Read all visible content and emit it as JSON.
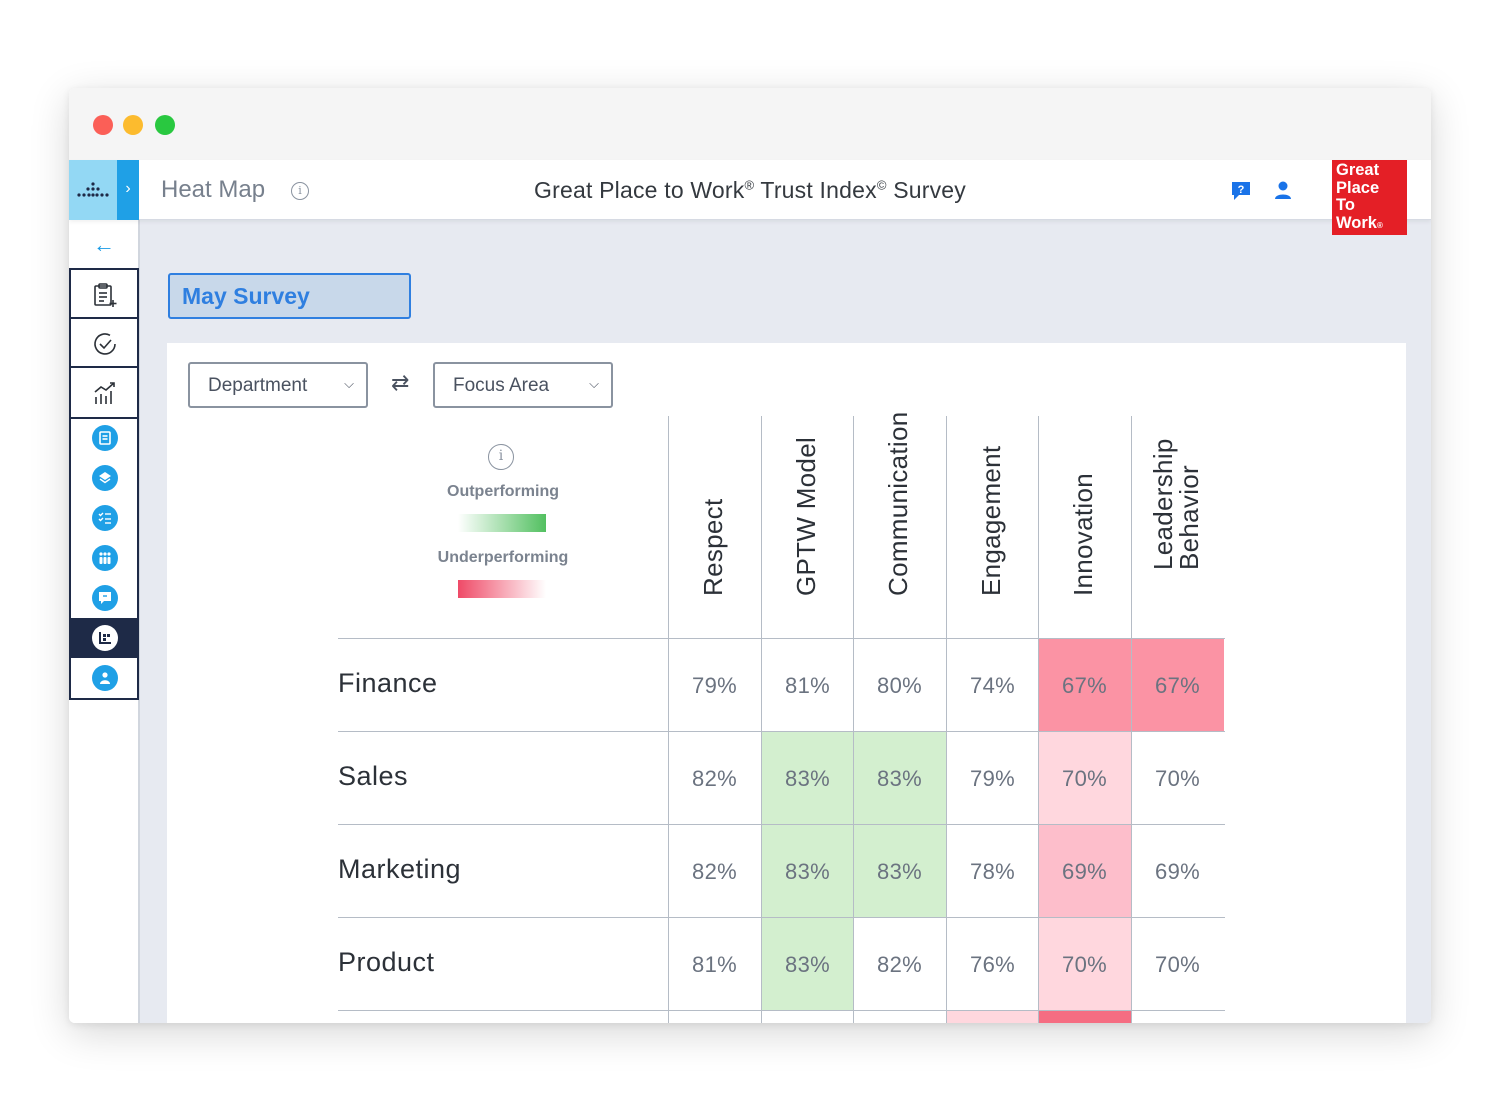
{
  "header": {
    "page_title": "Heat Map",
    "survey_title_main": "Great Place to Work",
    "survey_title_reg": "®",
    "survey_title_mid": " Trust Index",
    "survey_title_copy": "©",
    "survey_title_end": " Survey",
    "logo_lines": [
      "Great",
      "Place",
      "To",
      "Work"
    ],
    "logo_reg": "®",
    "icons": [
      "help-icon",
      "user-icon"
    ]
  },
  "sidebar": {
    "back_icon": "arrow-left-icon",
    "top_items": [
      "survey-clipboard-icon",
      "check-circle-icon",
      "analytics-icon"
    ],
    "items": [
      "document-icon",
      "layers-icon",
      "checklist-icon",
      "people-icon",
      "chat-icon",
      "heatmap-icon",
      "person-card-icon"
    ],
    "active_item": "heatmap-icon"
  },
  "survey_button": "May Survey",
  "filters": {
    "row_dimension": "Department",
    "column_dimension": "Focus Area",
    "swap_icon": "swap-arrows-icon"
  },
  "legend": {
    "outperforming": "Outperforming",
    "underperforming": "Underperforming",
    "colors": {
      "outperforming": "#52c060",
      "underperforming": "#ef4a67"
    }
  },
  "chart_data": {
    "type": "heatmap",
    "columns": [
      "Respect",
      "GPTW Model",
      "Communication",
      "Engagement",
      "Innovation",
      "Leadership Behavior"
    ],
    "rows": [
      "Finance",
      "Sales",
      "Marketing",
      "Product"
    ],
    "values": [
      [
        "79%",
        "81%",
        "80%",
        "74%",
        "67%",
        "67%"
      ],
      [
        "82%",
        "83%",
        "83%",
        "79%",
        "70%",
        "70%"
      ],
      [
        "82%",
        "83%",
        "83%",
        "78%",
        "69%",
        "69%"
      ],
      [
        "81%",
        "83%",
        "82%",
        "76%",
        "70%",
        "70%"
      ]
    ],
    "cell_colors": [
      [
        "#ffffff",
        "#ffffff",
        "#ffffff",
        "#ffffff",
        "#fb93a4",
        "#fb93a4"
      ],
      [
        "#ffffff",
        "#d3efcf",
        "#d3efcf",
        "#ffffff",
        "#ffd7de",
        "#ffffff"
      ],
      [
        "#ffffff",
        "#d3efcf",
        "#d3efcf",
        "#ffffff",
        "#fdbecb",
        "#ffffff"
      ],
      [
        "#ffffff",
        "#d3efcf",
        "#ffffff",
        "#ffffff",
        "#ffd7de",
        "#ffffff"
      ]
    ],
    "partial_next_row_colors": [
      "#ffffff",
      "#ffffff",
      "#ffffff",
      "#ffd7de",
      "#f56d82",
      "#ffffff"
    ]
  }
}
